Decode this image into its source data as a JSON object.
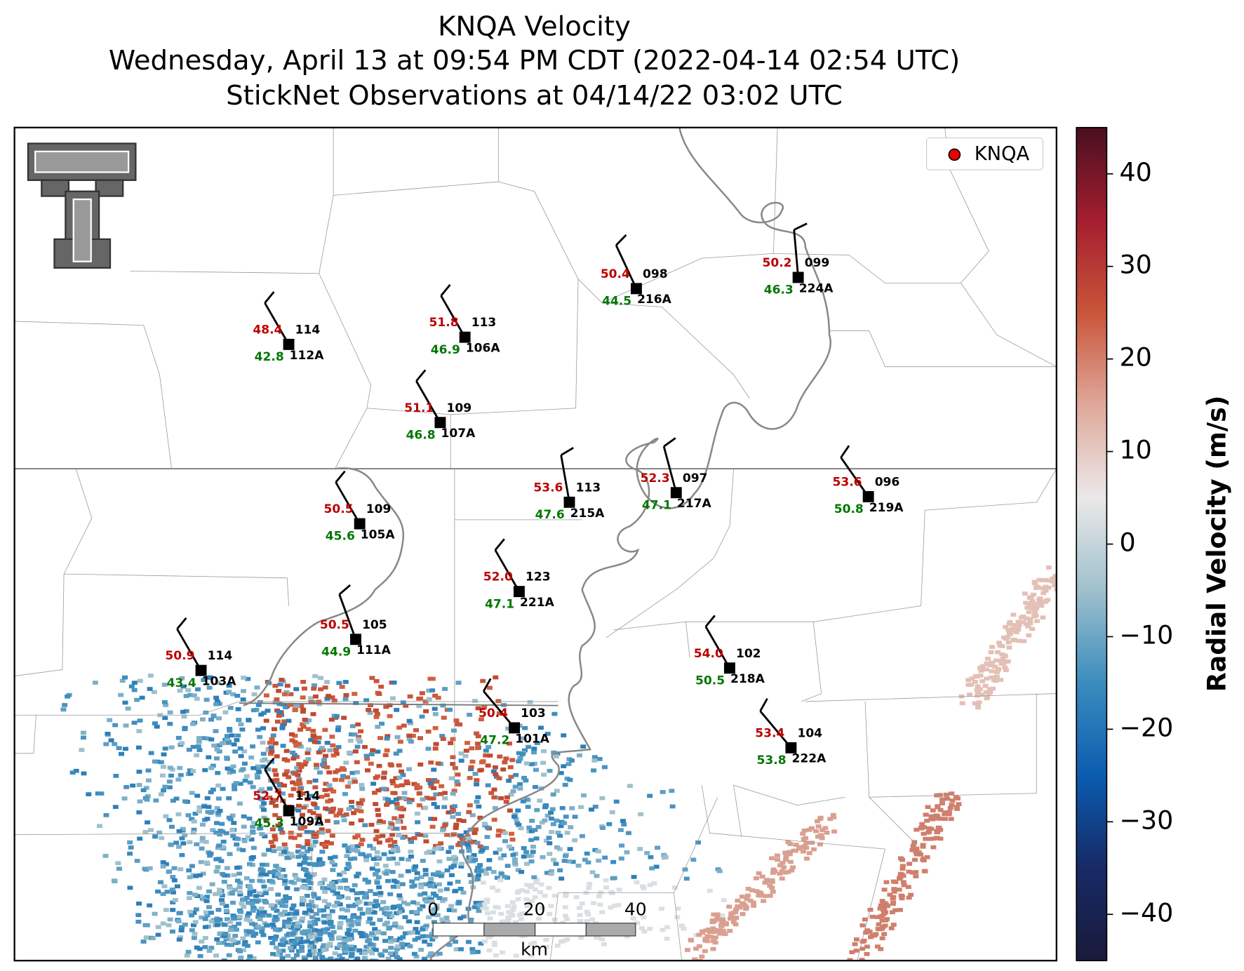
{
  "title": [
    "KNQA Velocity",
    "Wednesday, April 13 at 09:54 PM CDT (2022-04-14 02:54 UTC)",
    "StickNet Observations at 04/14/22 03:02 UTC"
  ],
  "legend": "KNQA",
  "stations": [
    {
      "temp": "48.4",
      "dewpoint": "42.8",
      "top": "114",
      "id": "112A"
    },
    {
      "temp": "51.8",
      "dewpoint": "46.9",
      "top": "113",
      "id": "106A"
    },
    {
      "temp": "50.4",
      "dewpoint": "44.5",
      "top": "098",
      "id": "216A"
    },
    {
      "temp": "50.2",
      "dewpoint": "46.3",
      "top": "099",
      "id": "224A"
    },
    {
      "temp": "51.1",
      "dewpoint": "46.8",
      "top": "109",
      "id": "107A"
    },
    {
      "temp": "53.6",
      "dewpoint": "47.6",
      "top": "113",
      "id": "215A"
    },
    {
      "temp": "52.3",
      "dewpoint": "47.1",
      "top": "097",
      "id": "217A"
    },
    {
      "temp": "53.6",
      "dewpoint": "50.8",
      "top": "096",
      "id": "219A"
    },
    {
      "temp": "50.5",
      "dewpoint": "45.6",
      "top": "109",
      "id": "105A"
    },
    {
      "temp": "52.0",
      "dewpoint": "47.1",
      "top": "123",
      "id": "221A"
    },
    {
      "temp": "50.5",
      "dewpoint": "44.9",
      "top": "105",
      "id": "111A"
    },
    {
      "temp": "50.9",
      "dewpoint": "43.4",
      "top": "114",
      "id": "103A"
    },
    {
      "temp": "54.0",
      "dewpoint": "50.5",
      "top": "102",
      "id": "218A"
    },
    {
      "temp": "50.4",
      "dewpoint": "47.2",
      "top": "103",
      "id": "101A"
    },
    {
      "temp": "53.4",
      "dewpoint": "53.8",
      "top": "104",
      "id": "222A"
    },
    {
      "temp": "52.7",
      "dewpoint": "45.3",
      "top": "114",
      "id": "109A"
    }
  ],
  "scale_bar": {
    "ticks": [
      0,
      20,
      40
    ],
    "unit": "km"
  },
  "colorbar": {
    "label": "Radial Velocity (m/s)",
    "lim": [
      -45,
      45
    ],
    "colors": [
      "#1a1a3a",
      "#172a66",
      "#0b5cb0",
      "#3a8cbe",
      "#9fc0cc",
      "#ebe9e9",
      "#dfa89a",
      "#c9553a",
      "#a41e2f",
      "#4a0f1f"
    ],
    "ticks": [
      {
        "value": -40,
        "label": "−40"
      },
      {
        "value": -30,
        "label": "−30"
      },
      {
        "value": -20,
        "label": "−20"
      },
      {
        "value": -10,
        "label": "−10"
      },
      0,
      10,
      20,
      30,
      40
    ]
  }
}
